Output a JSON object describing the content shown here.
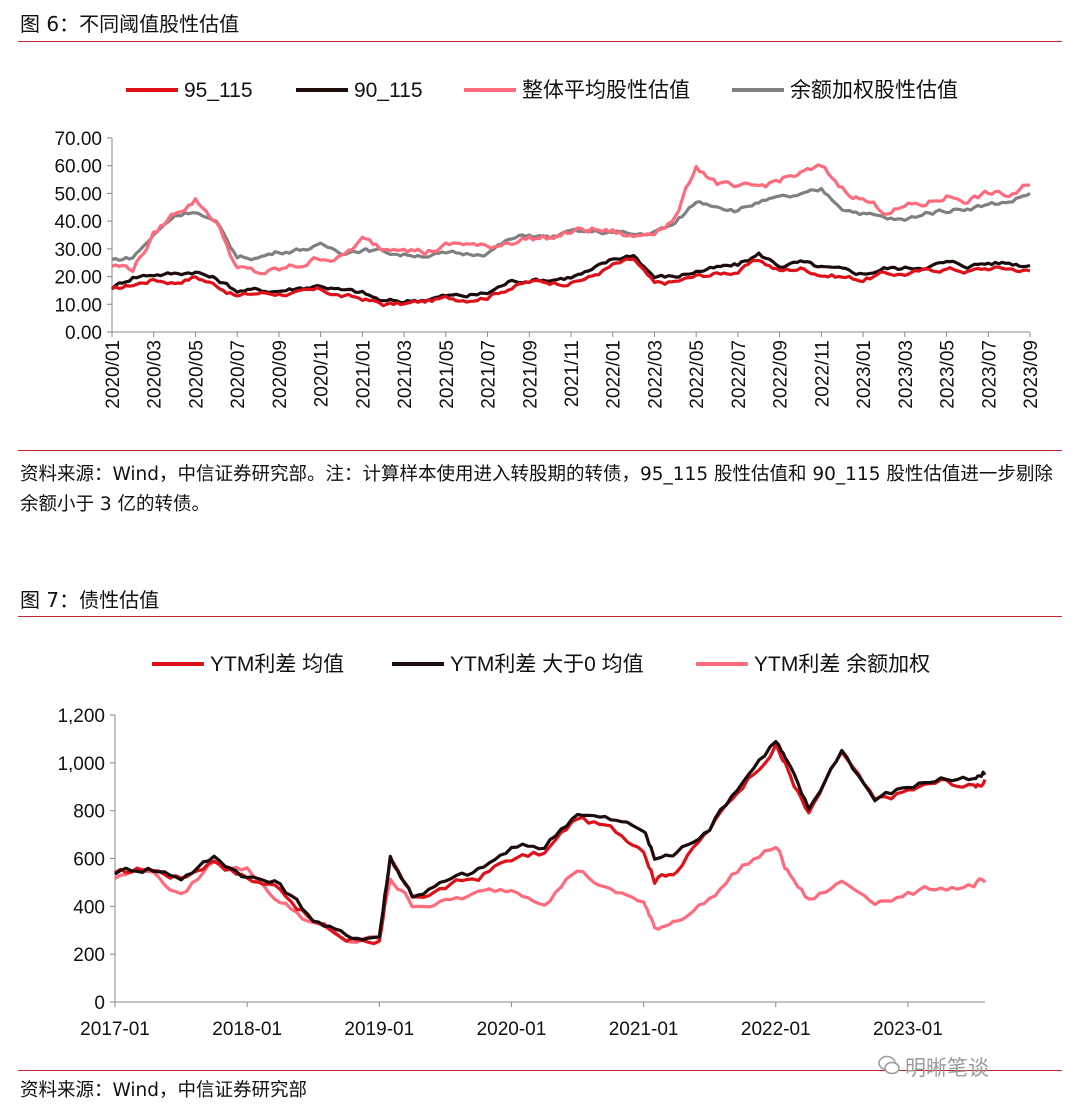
{
  "figures": [
    {
      "label": "图 6：不同阈值股性估值",
      "source": "资料来源：Wind，中信证券研究部。注：计算样本使用进入转股期的转债，95_115 股性估值和 90_115 股性估值进一步剔除余额小于 3 亿的转债。"
    },
    {
      "label": "图 7：债性估值",
      "source": "资料来源：Wind，中信证券研究部"
    }
  ],
  "watermark": "明晰笔谈",
  "chart_data": [
    {
      "type": "line",
      "title": "",
      "xlabel": "",
      "ylabel": "",
      "ylim": [
        0,
        70
      ],
      "yticks": [
        "0.00",
        "10.00",
        "20.00",
        "30.00",
        "40.00",
        "50.00",
        "60.00",
        "70.00"
      ],
      "xlim": [
        "2020-01",
        "2023-09"
      ],
      "xticks": [
        "2020/01",
        "2020/03",
        "2020/05",
        "2020/07",
        "2020/09",
        "2020/11",
        "2021/01",
        "2021/03",
        "2021/05",
        "2021/07",
        "2021/09",
        "2021/11",
        "2022/01",
        "2022/03",
        "2022/05",
        "2022/07",
        "2022/09",
        "2022/11",
        "2023/01",
        "2023/03",
        "2023/05",
        "2023/07",
        "2023/09"
      ],
      "legend_position": "top",
      "grid": false,
      "series": [
        {
          "name": "95_115",
          "color": "#e0101a",
          "x": [
            "2020-01",
            "2020-02",
            "2020-03",
            "2020-04",
            "2020-05",
            "2020-06",
            "2020-07",
            "2020-08",
            "2020-09",
            "2020-10",
            "2020-11",
            "2020-12",
            "2021-01",
            "2021-02",
            "2021-03",
            "2021-04",
            "2021-05",
            "2021-06",
            "2021-07",
            "2021-08",
            "2021-09",
            "2021-10",
            "2021-11",
            "2021-12",
            "2022-01",
            "2022-02",
            "2022-03",
            "2022-04",
            "2022-05",
            "2022-06",
            "2022-07",
            "2022-08",
            "2022-09",
            "2022-10",
            "2022-11",
            "2022-12",
            "2023-01",
            "2023-02",
            "2023-03",
            "2023-04",
            "2023-05",
            "2023-06",
            "2023-07",
            "2023-08",
            "2023-09"
          ],
          "values": [
            15,
            17,
            19,
            18,
            20,
            17,
            13,
            14,
            14,
            14,
            15,
            13,
            12,
            10,
            10,
            11,
            12,
            12,
            13,
            16,
            18,
            18,
            18,
            20,
            24,
            26,
            17,
            18,
            20,
            21,
            22,
            26,
            22,
            23,
            21,
            20,
            19,
            21,
            21,
            22,
            23,
            22,
            23,
            23,
            22
          ]
        },
        {
          "name": "90_115",
          "color": "#1c0c0c",
          "x": [
            "2020-01",
            "2020-02",
            "2020-03",
            "2020-04",
            "2020-05",
            "2020-06",
            "2020-07",
            "2020-08",
            "2020-09",
            "2020-10",
            "2020-11",
            "2020-12",
            "2021-01",
            "2021-02",
            "2021-03",
            "2021-04",
            "2021-05",
            "2021-06",
            "2021-07",
            "2021-08",
            "2021-09",
            "2021-10",
            "2021-11",
            "2021-12",
            "2022-01",
            "2022-02",
            "2022-03",
            "2022-04",
            "2022-05",
            "2022-06",
            "2022-07",
            "2022-08",
            "2022-09",
            "2022-10",
            "2022-11",
            "2022-12",
            "2023-01",
            "2023-02",
            "2023-03",
            "2023-04",
            "2023-05",
            "2023-06",
            "2023-07",
            "2023-08",
            "2023-09"
          ],
          "values": [
            16,
            20,
            21,
            21,
            22,
            19,
            15,
            15,
            15,
            16,
            17,
            15,
            14,
            11,
            11,
            12,
            13,
            13,
            14,
            18,
            19,
            19,
            20,
            22,
            26,
            28,
            20,
            20,
            22,
            23,
            24,
            28,
            24,
            25,
            23,
            22,
            21,
            23,
            23,
            24,
            25,
            24,
            25,
            25,
            24
          ]
        },
        {
          "name": "整体平均股性估值",
          "color": "#ff6b7c",
          "x": [
            "2020-01",
            "2020-02",
            "2020-03",
            "2020-04",
            "2020-05",
            "2020-06",
            "2020-07",
            "2020-08",
            "2020-09",
            "2020-10",
            "2020-11",
            "2020-12",
            "2021-01",
            "2021-02",
            "2021-03",
            "2021-04",
            "2021-05",
            "2021-06",
            "2021-07",
            "2021-08",
            "2021-09",
            "2021-10",
            "2021-11",
            "2021-12",
            "2022-01",
            "2022-02",
            "2022-03",
            "2022-04",
            "2022-05",
            "2022-06",
            "2022-07",
            "2022-08",
            "2022-09",
            "2022-10",
            "2022-11",
            "2022-12",
            "2023-01",
            "2023-02",
            "2023-03",
            "2023-04",
            "2023-05",
            "2023-06",
            "2023-07",
            "2023-08",
            "2023-09"
          ],
          "values": [
            24,
            23,
            35,
            43,
            48,
            40,
            23,
            21,
            22,
            24,
            27,
            27,
            33,
            30,
            32,
            29,
            31,
            32,
            30,
            33,
            34,
            34,
            36,
            37,
            36,
            34,
            37,
            41,
            60,
            54,
            51,
            52,
            55,
            57,
            59,
            52,
            48,
            44,
            45,
            46,
            49,
            48,
            50,
            49,
            53
          ]
        },
        {
          "name": "余额加权股性估值",
          "color": "#808080",
          "x": [
            "2020-01",
            "2020-02",
            "2020-03",
            "2020-04",
            "2020-05",
            "2020-06",
            "2020-07",
            "2020-08",
            "2020-09",
            "2020-10",
            "2020-11",
            "2020-12",
            "2021-01",
            "2021-02",
            "2021-03",
            "2021-04",
            "2021-05",
            "2021-06",
            "2021-07",
            "2021-08",
            "2021-09",
            "2021-10",
            "2021-11",
            "2021-12",
            "2022-01",
            "2022-02",
            "2022-03",
            "2022-04",
            "2022-05",
            "2022-06",
            "2022-07",
            "2022-08",
            "2022-09",
            "2022-10",
            "2022-11",
            "2022-12",
            "2023-01",
            "2023-02",
            "2023-03",
            "2023-04",
            "2023-05",
            "2023-06",
            "2023-07",
            "2023-08",
            "2023-09"
          ],
          "values": [
            26,
            27,
            35,
            42,
            44,
            39,
            27,
            27,
            29,
            30,
            31,
            29,
            30,
            29,
            28,
            28,
            28,
            28,
            29,
            33,
            35,
            34,
            36,
            36,
            36,
            35,
            36,
            39,
            47,
            46,
            44,
            47,
            48,
            49,
            51,
            45,
            43,
            41,
            40,
            43,
            44,
            45,
            46,
            47,
            50
          ]
        }
      ]
    },
    {
      "type": "line",
      "title": "",
      "xlabel": "",
      "ylabel": "",
      "ylim": [
        0,
        1200
      ],
      "yticks": [
        "0",
        "200",
        "400",
        "600",
        "800",
        "1,000",
        "1,200"
      ],
      "xlim": [
        "2017-01",
        "2023-08"
      ],
      "xticks": [
        "2017-01",
        "2018-01",
        "2019-01",
        "2020-01",
        "2021-01",
        "2022-01",
        "2023-01"
      ],
      "legend_position": "top",
      "grid": false,
      "series": [
        {
          "name": "YTM利差 均值",
          "color": "#e0101a",
          "x": [
            "2017-01",
            "2017-04",
            "2017-07",
            "2017-10",
            "2018-01",
            "2018-04",
            "2018-07",
            "2018-10",
            "2019-01",
            "2019-02",
            "2019-04",
            "2019-07",
            "2019-10",
            "2020-01",
            "2020-04",
            "2020-07",
            "2020-10",
            "2021-01",
            "2021-02",
            "2021-04",
            "2021-07",
            "2021-10",
            "2022-01",
            "2022-02",
            "2022-04",
            "2022-07",
            "2022-10",
            "2023-01",
            "2023-04",
            "2023-07",
            "2023-08"
          ],
          "values": [
            530,
            560,
            520,
            600,
            520,
            480,
            340,
            260,
            260,
            580,
            430,
            480,
            520,
            600,
            620,
            770,
            720,
            650,
            520,
            560,
            720,
            910,
            1080,
            980,
            780,
            1040,
            830,
            880,
            920,
            900,
            930
          ]
        },
        {
          "name": "YTM利差 大于0 均值",
          "color": "#1c0c0c",
          "x": [
            "2017-01",
            "2017-04",
            "2017-07",
            "2017-10",
            "2018-01",
            "2018-04",
            "2018-07",
            "2018-10",
            "2019-01",
            "2019-02",
            "2019-04",
            "2019-07",
            "2019-10",
            "2020-01",
            "2020-04",
            "2020-07",
            "2020-10",
            "2021-01",
            "2021-02",
            "2021-04",
            "2021-07",
            "2021-10",
            "2022-01",
            "2022-02",
            "2022-04",
            "2022-07",
            "2022-10",
            "2023-01",
            "2023-04",
            "2023-07",
            "2023-08"
          ],
          "values": [
            545,
            565,
            525,
            605,
            530,
            490,
            350,
            270,
            280,
            610,
            450,
            500,
            545,
            640,
            650,
            800,
            760,
            720,
            600,
            620,
            740,
            930,
            1100,
            1000,
            800,
            1060,
            850,
            900,
            940,
            920,
            950
          ]
        },
        {
          "name": "YTM利差 余额加权",
          "color": "#ff6b7c",
          "x": [
            "2017-01",
            "2017-04",
            "2017-07",
            "2017-10",
            "2018-01",
            "2018-04",
            "2018-07",
            "2018-10",
            "2019-01",
            "2019-02",
            "2019-04",
            "2019-07",
            "2019-10",
            "2020-01",
            "2020-04",
            "2020-07",
            "2020-10",
            "2021-01",
            "2021-02",
            "2021-04",
            "2021-07",
            "2021-10",
            "2022-01",
            "2022-02",
            "2022-04",
            "2022-07",
            "2022-10",
            "2023-01",
            "2023-04",
            "2023-07",
            "2023-08"
          ],
          "values": [
            520,
            560,
            440,
            590,
            560,
            420,
            330,
            250,
            260,
            520,
            410,
            420,
            450,
            470,
            430,
            560,
            460,
            420,
            300,
            350,
            430,
            570,
            650,
            550,
            420,
            500,
            430,
            450,
            480,
            490,
            500
          ]
        }
      ]
    }
  ]
}
